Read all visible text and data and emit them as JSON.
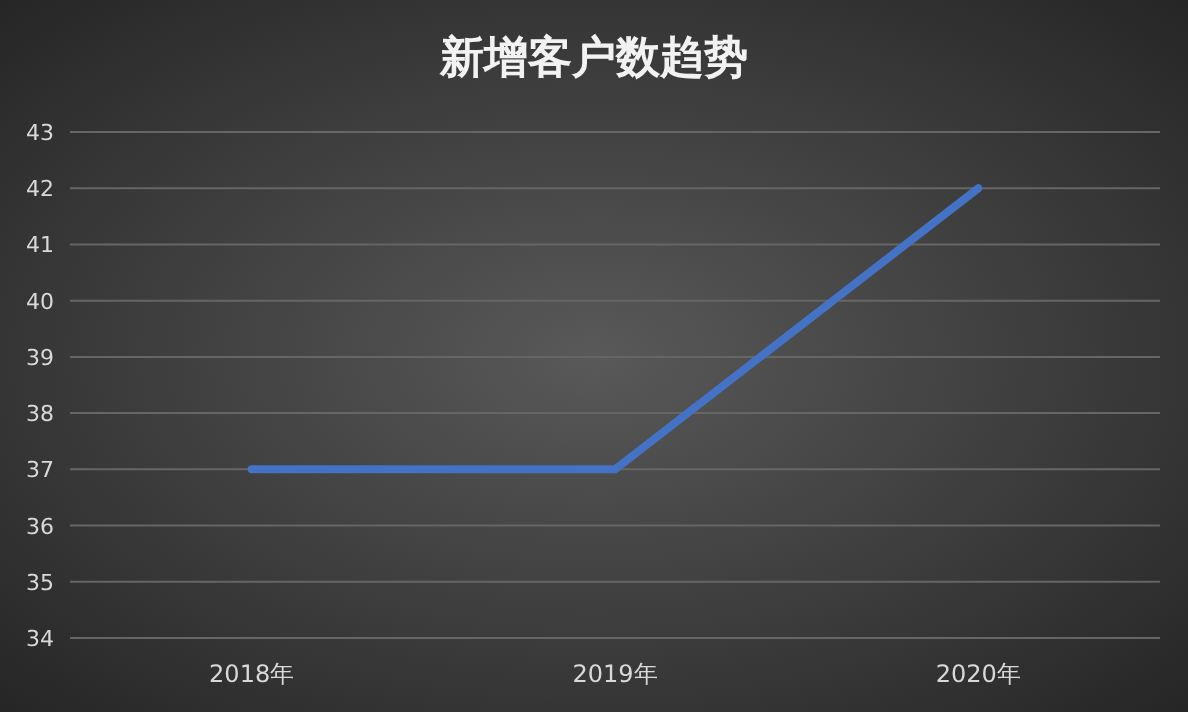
{
  "chart_data": {
    "type": "line",
    "title": "新增客户数趋势",
    "categories": [
      "2018年",
      "2019年",
      "2020年"
    ],
    "values": [
      37,
      37,
      42
    ],
    "color": "#4472c4",
    "ylim": [
      34,
      43
    ],
    "yticks": [
      34,
      35,
      36,
      37,
      38,
      39,
      40,
      41,
      42,
      43
    ],
    "grid": "y"
  }
}
